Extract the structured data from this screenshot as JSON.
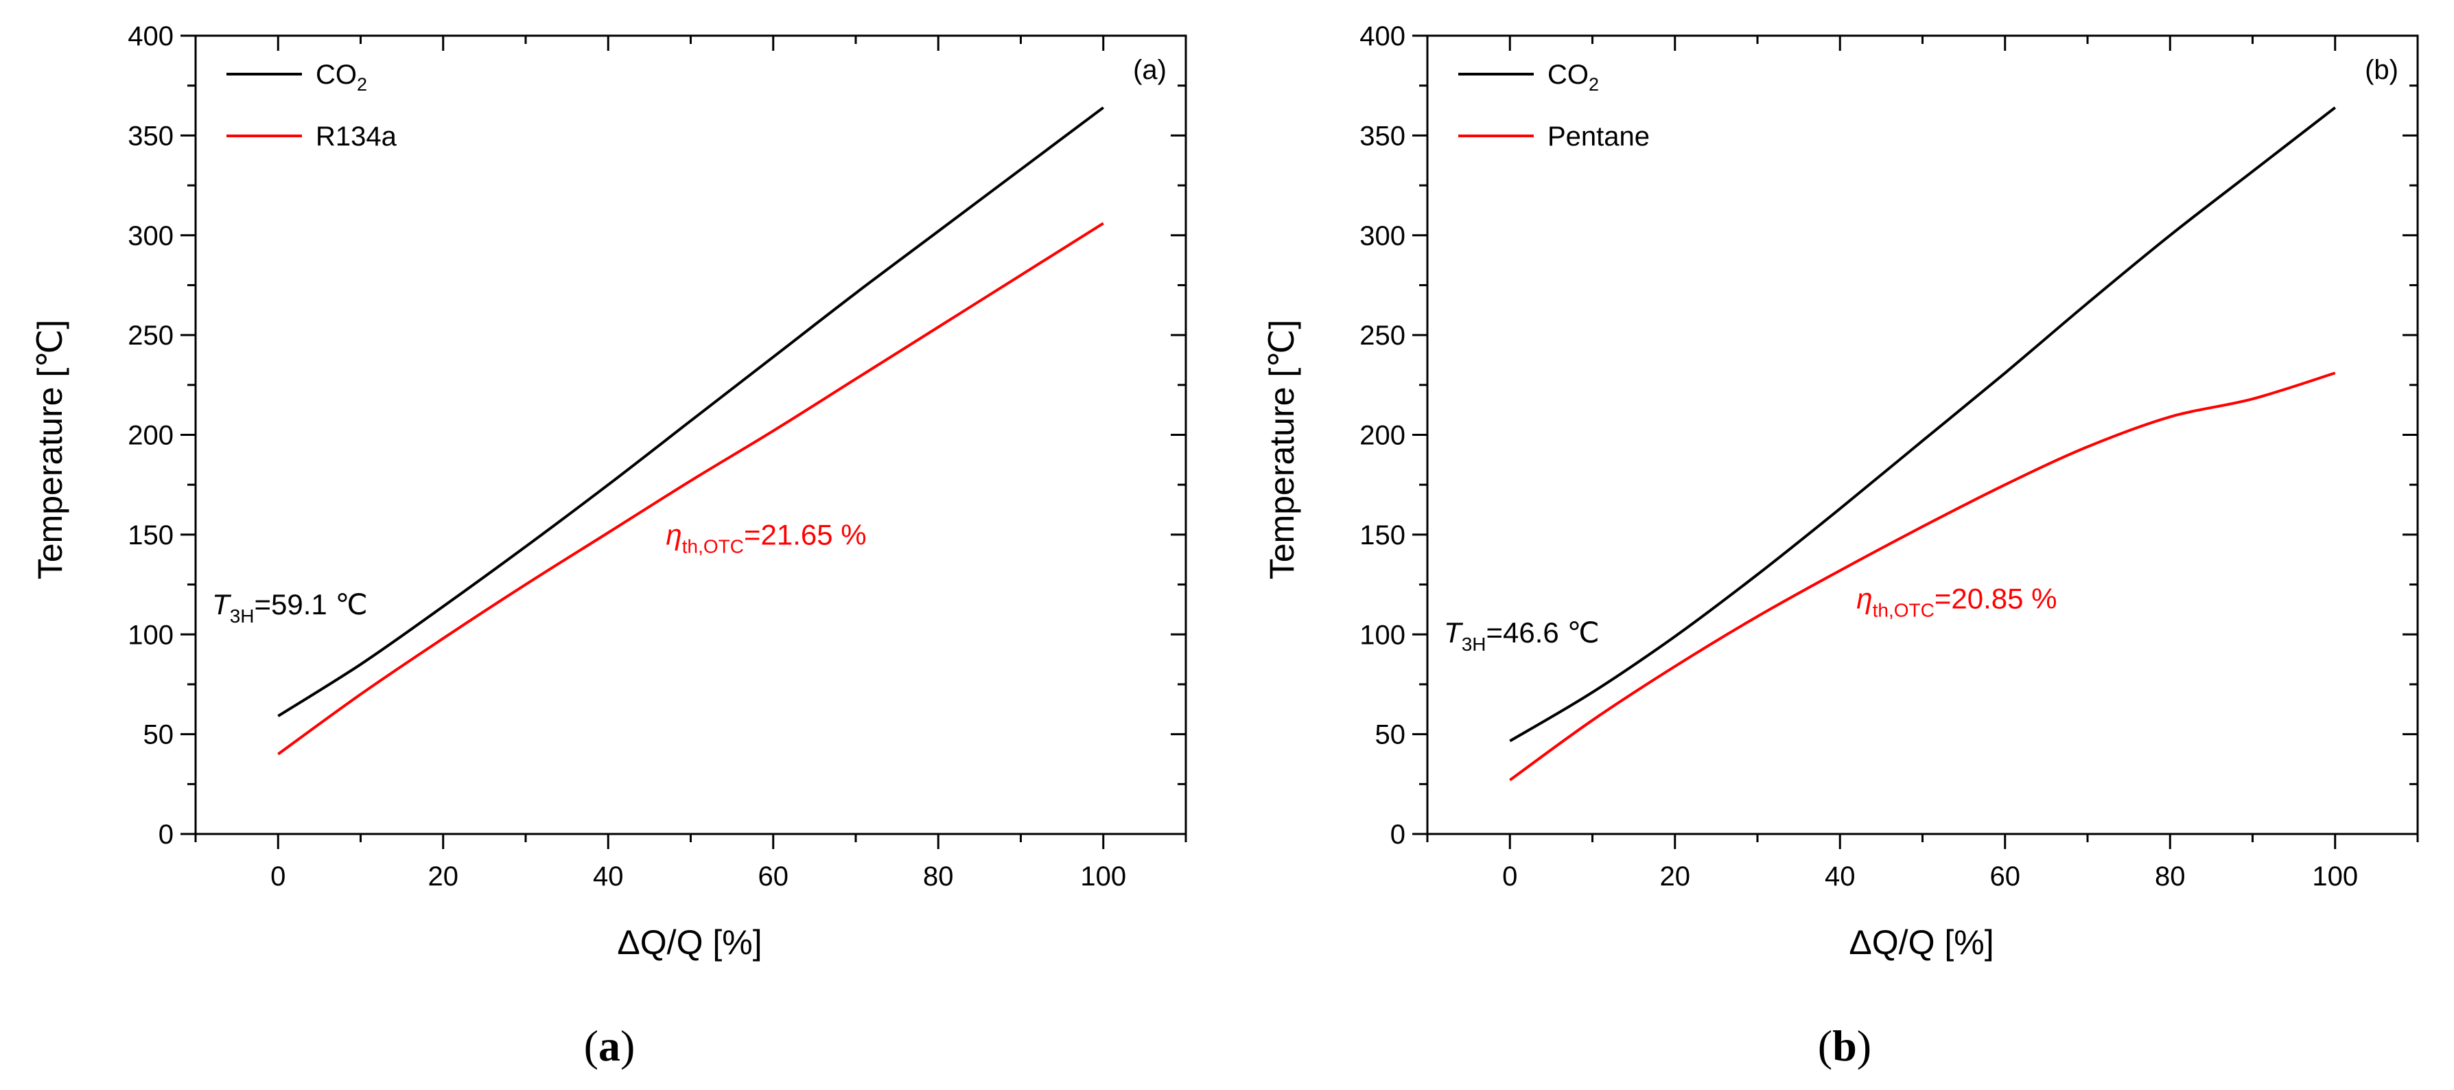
{
  "chart_data": [
    {
      "type": "line",
      "panel": "(a)",
      "caption_open": "(",
      "caption_letter": "a",
      "caption_close": ")",
      "xlabel": "ΔQ/Q [%]",
      "ylabel": "Temperature [℃]",
      "xlim": [
        -10,
        110
      ],
      "ylim": [
        0,
        400
      ],
      "xticks": [
        0,
        20,
        40,
        60,
        80,
        100
      ],
      "yticks": [
        0,
        50,
        100,
        150,
        200,
        250,
        300,
        350,
        400
      ],
      "legend_position": "top-left",
      "series": [
        {
          "name": "CO2",
          "name_base": "CO",
          "name_sub": "2",
          "color": "#000000",
          "x": [
            0,
            10,
            20,
            30,
            40,
            50,
            60,
            70,
            80,
            90,
            100
          ],
          "y": [
            59.1,
            85,
            114,
            144,
            175,
            207,
            239,
            271,
            302,
            333,
            364
          ]
        },
        {
          "name": "R134a",
          "color": "#ff0000",
          "x": [
            0,
            10,
            20,
            30,
            40,
            50,
            60,
            70,
            80,
            90,
            100
          ],
          "y": [
            40,
            70,
            98,
            125,
            151,
            177,
            202,
            228,
            254,
            280,
            306
          ]
        }
      ],
      "annotations": [
        {
          "sym": "T",
          "sub": "3H",
          "value": "=59.1 ℃",
          "color": "#000000",
          "at_x": -8,
          "at_y": 110
        },
        {
          "sym": "η",
          "sub": "th,OTC",
          "value": "=21.65 %",
          "color": "#ff0000",
          "at_x": 47,
          "at_y": 145
        }
      ]
    },
    {
      "type": "line",
      "panel": "(b)",
      "caption_open": "(",
      "caption_letter": "b",
      "caption_close": ")",
      "xlabel": "ΔQ/Q [%]",
      "ylabel": "Temperature [℃]",
      "xlim": [
        -10,
        110
      ],
      "ylim": [
        0,
        400
      ],
      "xticks": [
        0,
        20,
        40,
        60,
        80,
        100
      ],
      "yticks": [
        0,
        50,
        100,
        150,
        200,
        250,
        300,
        350,
        400
      ],
      "legend_position": "top-left",
      "series": [
        {
          "name": "CO2",
          "name_base": "CO",
          "name_sub": "2",
          "color": "#000000",
          "x": [
            0,
            10,
            20,
            30,
            40,
            50,
            60,
            70,
            80,
            90,
            100
          ],
          "y": [
            46.6,
            71,
            99,
            130,
            163,
            197,
            231,
            266,
            300,
            332,
            364
          ]
        },
        {
          "name": "Pentane",
          "color": "#ff0000",
          "x": [
            0,
            10,
            20,
            30,
            40,
            50,
            60,
            70,
            80,
            90,
            100
          ],
          "y": [
            27,
            57,
            84,
            109,
            132,
            154,
            175,
            194,
            209,
            218,
            231
          ]
        }
      ],
      "annotations": [
        {
          "sym": "T",
          "sub": "3H",
          "value": "=46.6 ℃",
          "color": "#000000",
          "at_x": -8,
          "at_y": 96
        },
        {
          "sym": "η",
          "sub": "th,OTC",
          "value": "=20.85 %",
          "color": "#ff0000",
          "at_x": 42,
          "at_y": 113
        }
      ]
    }
  ]
}
